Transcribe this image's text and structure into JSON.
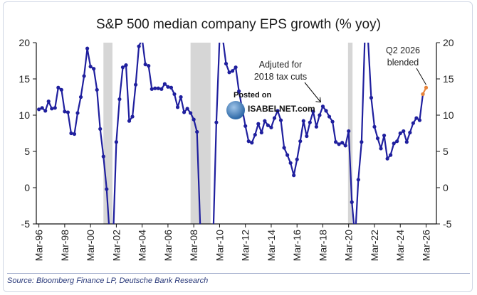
{
  "chart_data": {
    "type": "line",
    "title": "S&P 500 median company EPS growth (% yoy)",
    "source": "Source: Bloomberg Finance LP, Deutsche Bank Research",
    "ylim": [
      -5,
      20
    ],
    "yticks": [
      -5,
      0,
      5,
      10,
      15,
      20
    ],
    "xlim": [
      1996.0,
      2027.0
    ],
    "xticks": [
      "Mar-96",
      "Mar-98",
      "Mar-00",
      "Mar-02",
      "Mar-04",
      "Mar-06",
      "Mar-08",
      "Mar-10",
      "Mar-12",
      "Mar-14",
      "Mar-16",
      "Mar-18",
      "Mar-20",
      "Mar-22",
      "Mar-24",
      "Mar-26"
    ],
    "recessions": [
      [
        2001.2,
        2001.9
      ],
      [
        2007.95,
        2009.5
      ],
      [
        2020.15,
        2020.5
      ]
    ],
    "series": [
      {
        "color": "#1f1f9e",
        "points": [
          [
            1996.2,
            10.8
          ],
          [
            1996.45,
            11.0
          ],
          [
            1996.7,
            10.6
          ],
          [
            1996.95,
            11.9
          ],
          [
            1997.2,
            10.9
          ],
          [
            1997.45,
            11.0
          ],
          [
            1997.7,
            13.8
          ],
          [
            1997.95,
            13.5
          ],
          [
            1998.2,
            10.5
          ],
          [
            1998.45,
            10.4
          ],
          [
            1998.7,
            7.5
          ],
          [
            1998.95,
            7.4
          ],
          [
            1999.2,
            10.3
          ],
          [
            1999.45,
            12.5
          ],
          [
            1999.7,
            15.4
          ],
          [
            1999.95,
            19.2
          ],
          [
            2000.2,
            16.7
          ],
          [
            2000.45,
            16.4
          ],
          [
            2000.7,
            13.5
          ],
          [
            2000.95,
            8.1
          ],
          [
            2001.2,
            4.3
          ],
          [
            2001.45,
            -0.2
          ],
          [
            2001.7,
            -7.0
          ],
          [
            2001.95,
            -7.0
          ],
          [
            2002.2,
            6.3
          ],
          [
            2002.45,
            12.2
          ],
          [
            2002.7,
            16.6
          ],
          [
            2002.95,
            16.9
          ],
          [
            2003.2,
            9.2
          ],
          [
            2003.45,
            9.8
          ],
          [
            2003.7,
            14.2
          ],
          [
            2003.95,
            19.5
          ],
          [
            2004.2,
            20.5
          ],
          [
            2004.45,
            17.0
          ],
          [
            2004.7,
            16.8
          ],
          [
            2004.95,
            13.6
          ],
          [
            2005.2,
            13.7
          ],
          [
            2005.45,
            13.7
          ],
          [
            2005.7,
            13.6
          ],
          [
            2005.95,
            14.3
          ],
          [
            2006.2,
            13.9
          ],
          [
            2006.45,
            13.8
          ],
          [
            2006.7,
            12.9
          ],
          [
            2006.95,
            11.1
          ],
          [
            2007.2,
            12.5
          ],
          [
            2007.45,
            10.4
          ],
          [
            2007.7,
            10.9
          ],
          [
            2007.95,
            10.3
          ],
          [
            2008.2,
            9.4
          ],
          [
            2008.45,
            7.7
          ],
          [
            2008.7,
            -5.2
          ],
          [
            2008.95,
            -7.0
          ],
          [
            2009.2,
            -7.0
          ],
          [
            2009.7,
            -7.0
          ],
          [
            2009.95,
            9.0
          ],
          [
            2010.2,
            20.5
          ],
          [
            2010.45,
            20.5
          ],
          [
            2010.7,
            17.1
          ],
          [
            2010.95,
            15.9
          ],
          [
            2011.2,
            16.1
          ],
          [
            2011.45,
            16.6
          ],
          [
            2011.7,
            13.3
          ],
          [
            2011.95,
            10.9
          ],
          [
            2012.2,
            8.5
          ],
          [
            2012.45,
            6.4
          ],
          [
            2012.7,
            6.2
          ],
          [
            2012.95,
            7.3
          ],
          [
            2013.2,
            8.8
          ],
          [
            2013.45,
            7.6
          ],
          [
            2013.7,
            9.2
          ],
          [
            2013.95,
            8.6
          ],
          [
            2014.2,
            8.3
          ],
          [
            2014.45,
            9.6
          ],
          [
            2014.7,
            10.6
          ],
          [
            2014.95,
            9.3
          ],
          [
            2015.2,
            5.5
          ],
          [
            2015.45,
            4.5
          ],
          [
            2015.7,
            3.4
          ],
          [
            2015.95,
            1.7
          ],
          [
            2016.2,
            3.9
          ],
          [
            2016.45,
            6.4
          ],
          [
            2016.7,
            9.2
          ],
          [
            2016.95,
            7.1
          ],
          [
            2017.2,
            9.0
          ],
          [
            2017.45,
            10.5
          ],
          [
            2017.7,
            8.4
          ],
          [
            2017.95,
            10.0
          ],
          [
            2018.2,
            11.2
          ],
          [
            2018.45,
            10.6
          ],
          [
            2018.7,
            9.8
          ],
          [
            2018.95,
            9.1
          ],
          [
            2019.2,
            6.3
          ],
          [
            2019.45,
            6.0
          ],
          [
            2019.7,
            6.2
          ],
          [
            2019.95,
            5.8
          ],
          [
            2020.2,
            7.8
          ],
          [
            2020.45,
            -2.0
          ],
          [
            2020.7,
            -7.0
          ],
          [
            2020.95,
            1.1
          ],
          [
            2021.2,
            6.3
          ],
          [
            2021.45,
            20.5
          ],
          [
            2021.7,
            20.5
          ],
          [
            2021.95,
            12.4
          ],
          [
            2022.2,
            8.4
          ],
          [
            2022.45,
            6.8
          ],
          [
            2022.7,
            5.4
          ],
          [
            2022.95,
            7.2
          ],
          [
            2023.2,
            4.0
          ],
          [
            2023.45,
            4.5
          ],
          [
            2023.7,
            6.1
          ],
          [
            2023.95,
            6.4
          ],
          [
            2024.2,
            7.5
          ],
          [
            2024.45,
            7.8
          ],
          [
            2024.7,
            6.3
          ],
          [
            2024.95,
            7.6
          ],
          [
            2025.2,
            8.9
          ],
          [
            2025.45,
            9.6
          ],
          [
            2025.7,
            9.3
          ],
          [
            2025.95,
            12.9
          ]
        ]
      },
      {
        "color": "#e8843a",
        "points": [
          [
            2025.95,
            12.9
          ],
          [
            2026.2,
            13.8
          ]
        ]
      }
    ],
    "annotations": [
      {
        "lines": [
          "Adjuted for",
          "2018 tax cuts"
        ],
        "target": [
          2018.2,
          11.2
        ]
      },
      {
        "lines": [
          "Q2 2026",
          "blended"
        ],
        "target": [
          2026.2,
          13.8
        ]
      }
    ]
  },
  "watermark": {
    "line1": "Posted on",
    "line2": "ISABELNET.com"
  },
  "colors": {
    "recession_shade": "#d6d6d6",
    "axis": "#111111"
  }
}
